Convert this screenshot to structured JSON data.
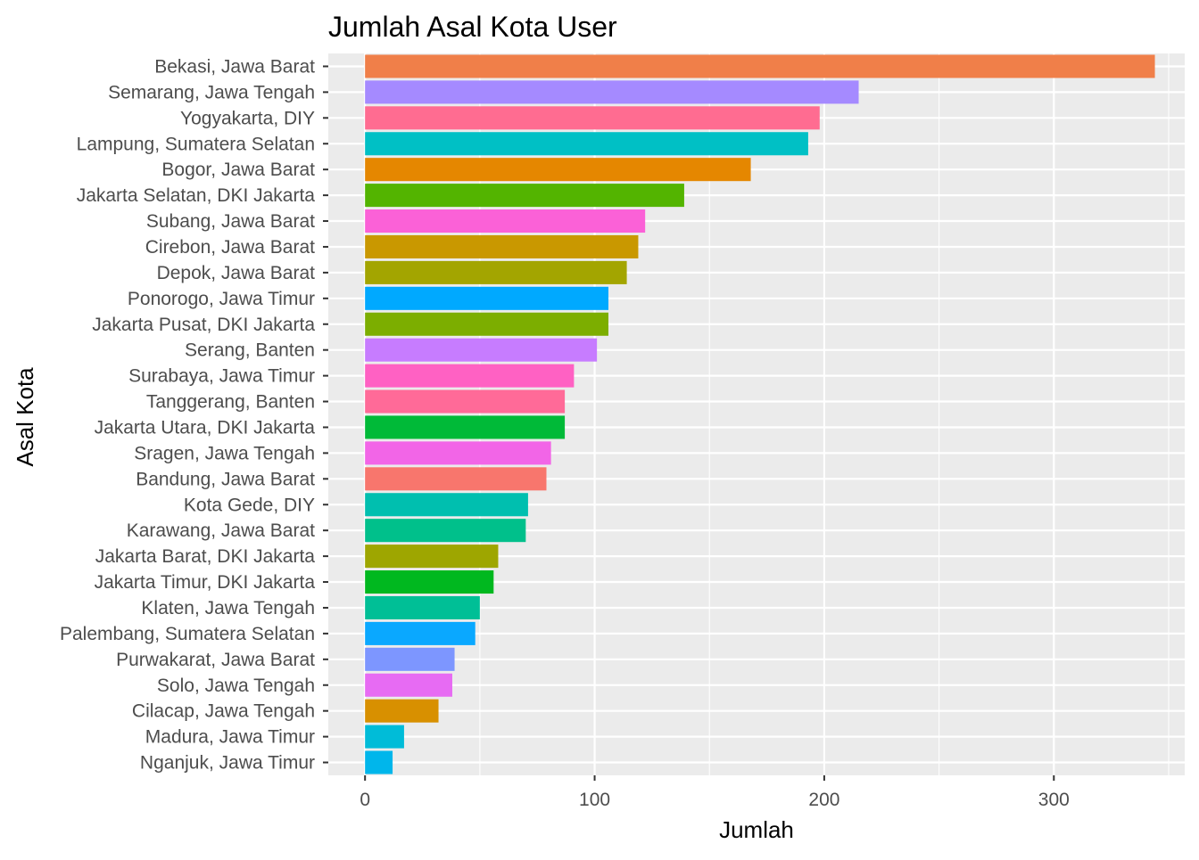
{
  "chart_data": {
    "type": "bar",
    "orientation": "horizontal",
    "title": "Jumlah Asal Kota User",
    "xlabel": "Jumlah",
    "ylabel": "Asal Kota",
    "xlim": [
      -16,
      357
    ],
    "x_ticks": [
      0,
      100,
      200,
      300
    ],
    "grid": true,
    "legend": "none",
    "panel_background": "#EBEBEB",
    "categories": [
      "Bekasi, Jawa Barat",
      "Semarang, Jawa Tengah",
      "Yogyakarta, DIY",
      "Lampung, Sumatera Selatan",
      "Bogor, Jawa Barat",
      "Jakarta Selatan, DKI Jakarta",
      "Subang, Jawa Barat",
      "Cirebon, Jawa Barat",
      "Depok, Jawa Barat",
      "Ponorogo, Jawa Timur",
      "Jakarta Pusat, DKI Jakarta",
      "Serang, Banten",
      "Surabaya, Jawa Timur",
      "Tanggerang, Banten",
      "Jakarta Utara, DKI Jakarta",
      "Sragen, Jawa Tengah",
      "Bandung, Jawa Barat",
      "Kota Gede, DIY",
      "Karawang, Jawa Barat",
      "Jakarta Barat, DKI Jakarta",
      "Jakarta Timur, DKI Jakarta",
      "Klaten, Jawa Tengah",
      "Palembang, Sumatera Selatan",
      "Purwakarat, Jawa Barat",
      "Solo, Jawa Tengah",
      "Cilacap, Jawa Tengah",
      "Madura, Jawa Timur",
      "Nganjuk, Jawa Timur"
    ],
    "values": [
      344,
      215,
      198,
      193,
      168,
      139,
      122,
      119,
      114,
      106,
      106,
      101,
      91,
      87,
      87,
      81,
      79,
      71,
      70,
      58,
      56,
      50,
      48,
      39,
      38,
      32,
      17,
      12
    ],
    "colors": [
      "#F07F49",
      "#A58AFF",
      "#FF6C91",
      "#00C0C5",
      "#E58700",
      "#53B400",
      "#FB61D7",
      "#C99800",
      "#A3A500",
      "#00A9FF",
      "#7CAE00",
      "#C77CFF",
      "#FF61C3",
      "#FF6A98",
      "#00BA38",
      "#F265E7",
      "#F8766D",
      "#00BFAF",
      "#00C08B",
      "#9EA600",
      "#00B81F",
      "#00BF96",
      "#0AA8FF",
      "#7D96FF",
      "#E76BF3",
      "#D89000",
      "#00BCD8",
      "#00B6EB"
    ]
  }
}
